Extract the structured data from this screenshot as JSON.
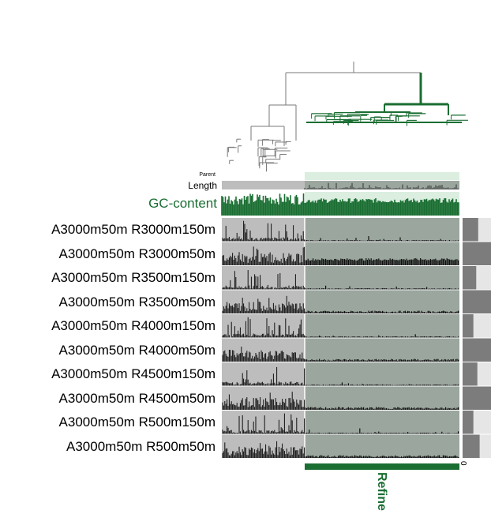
{
  "chart_data": {
    "type": "heatmap",
    "title": "",
    "header_labels": {
      "parent": "Parent",
      "length": "Length",
      "gc": "GC-content"
    },
    "selection_label": "Refine",
    "scale_tick": "0",
    "colors": {
      "selected": "#1a6e32",
      "tree_gray": "#7a7a7a",
      "panel_unselected": "#bdbdbd",
      "panel_selected": "#9aa69e",
      "selected_light": "#dbeee0",
      "bar_gray": "#7c7c7c",
      "bar_bg": "#e6e6e6",
      "trace_dark": "#101010"
    },
    "selected_fraction": 0.65,
    "rows": [
      {
        "name": "A3000m50m R3000m150m",
        "bar": 0.55,
        "style": "sparse"
      },
      {
        "name": "A3000m50m R3000m50m",
        "bar": 1.0,
        "style": "dense"
      },
      {
        "name": "A3000m50m R3500m150m",
        "bar": 0.48,
        "style": "sparse"
      },
      {
        "name": "A3000m50m R3500m50m",
        "bar": 1.0,
        "style": "dense"
      },
      {
        "name": "A3000m50m R4000m150m",
        "bar": 0.38,
        "style": "sparse"
      },
      {
        "name": "A3000m50m R4000m50m",
        "bar": 1.0,
        "style": "dense"
      },
      {
        "name": "A3000m50m R4500m150m",
        "bar": 0.52,
        "style": "sparse"
      },
      {
        "name": "A3000m50m R4500m50m",
        "bar": 1.0,
        "style": "dense"
      },
      {
        "name": "A3000m50m R500m150m",
        "bar": 0.38,
        "style": "sparse"
      },
      {
        "name": "A3000m50m R500m50m",
        "bar": 0.6,
        "style": "dense"
      }
    ]
  }
}
